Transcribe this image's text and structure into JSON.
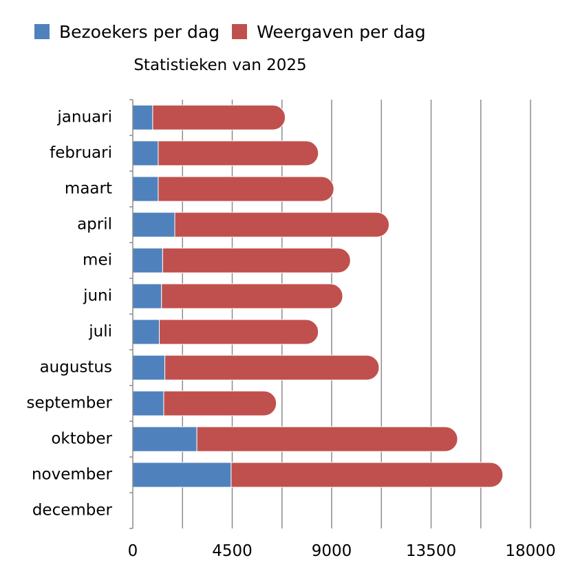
{
  "chart_data": {
    "type": "bar",
    "orientation": "horizontal",
    "stacked": true,
    "title": "Statistieken van 2025",
    "xlabel": "",
    "ylabel": "",
    "categories": [
      "januari",
      "februari",
      "maart",
      "april",
      "mei",
      "juni",
      "juli",
      "augustus",
      "september",
      "oktober",
      "november",
      "december"
    ],
    "series": [
      {
        "name": "Bezoekers per dag",
        "color": "#4f81bd",
        "values": [
          900,
          1150,
          1150,
          1900,
          1350,
          1300,
          1200,
          1450,
          1400,
          2900,
          4450,
          0
        ]
      },
      {
        "name": "Weergaven per dag",
        "color": "#c0504d",
        "values": [
          6000,
          7250,
          7950,
          9700,
          8500,
          8200,
          7200,
          9700,
          5100,
          11800,
          12300,
          0
        ]
      }
    ],
    "xlim": [
      0,
      18000
    ],
    "xticks": [
      "0",
      "4500",
      "9000",
      "13500",
      "18000"
    ],
    "grid": true,
    "legend": "top-left"
  }
}
